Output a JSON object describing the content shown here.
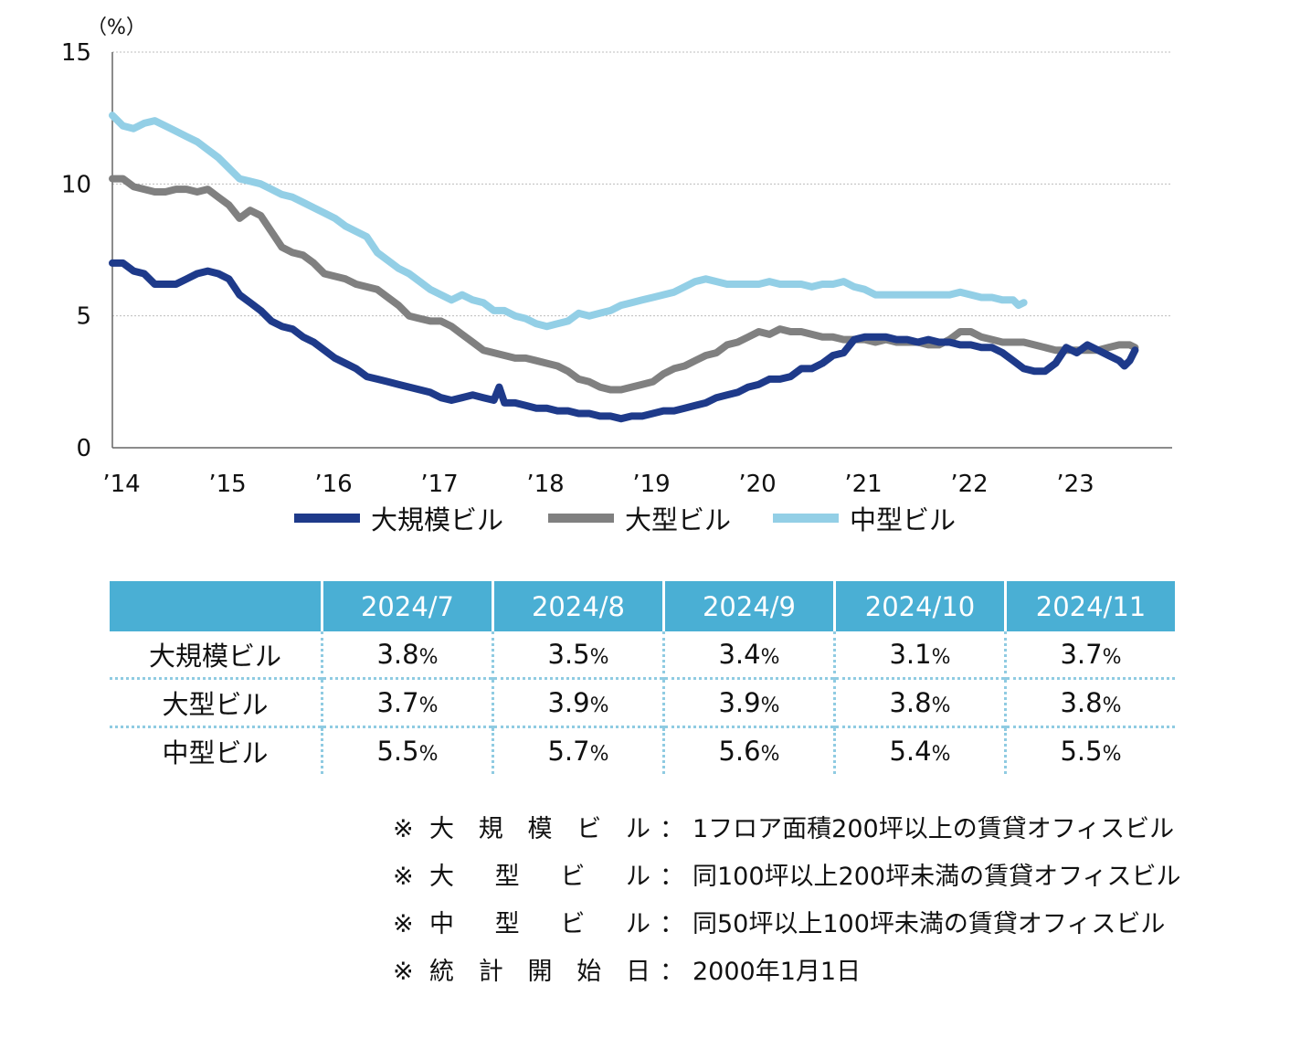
{
  "chart_data": {
    "type": "line",
    "unit_label": "（%）",
    "y_ticks": [
      "0",
      "5",
      "10",
      "15"
    ],
    "ylim": [
      0,
      15
    ],
    "x_ticks": [
      "’14",
      "’15",
      "’16",
      "’17",
      "’18",
      "’19",
      "’20",
      "’21",
      "’22",
      "’23"
    ],
    "xlim": [
      2014,
      2024
    ],
    "grid": true,
    "legend_position": "bottom",
    "series": [
      {
        "name": "大規模ビル",
        "color": "#1e3a8a",
        "points": [
          [
            2014.0,
            7.0
          ],
          [
            2014.1,
            7.0
          ],
          [
            2014.2,
            6.7
          ],
          [
            2014.3,
            6.6
          ],
          [
            2014.4,
            6.2
          ],
          [
            2014.5,
            6.2
          ],
          [
            2014.6,
            6.2
          ],
          [
            2014.7,
            6.4
          ],
          [
            2014.8,
            6.6
          ],
          [
            2014.9,
            6.7
          ],
          [
            2015.0,
            6.6
          ],
          [
            2015.1,
            6.4
          ],
          [
            2015.2,
            5.8
          ],
          [
            2015.3,
            5.5
          ],
          [
            2015.4,
            5.2
          ],
          [
            2015.5,
            4.8
          ],
          [
            2015.6,
            4.6
          ],
          [
            2015.7,
            4.5
          ],
          [
            2015.8,
            4.2
          ],
          [
            2015.9,
            4.0
          ],
          [
            2016.0,
            3.7
          ],
          [
            2016.1,
            3.4
          ],
          [
            2016.2,
            3.2
          ],
          [
            2016.3,
            3.0
          ],
          [
            2016.4,
            2.7
          ],
          [
            2016.5,
            2.6
          ],
          [
            2016.6,
            2.5
          ],
          [
            2016.7,
            2.4
          ],
          [
            2016.8,
            2.3
          ],
          [
            2016.9,
            2.2
          ],
          [
            2017.0,
            2.1
          ],
          [
            2017.1,
            1.9
          ],
          [
            2017.2,
            1.8
          ],
          [
            2017.3,
            1.9
          ],
          [
            2017.4,
            2.0
          ],
          [
            2017.5,
            1.9
          ],
          [
            2017.6,
            1.8
          ],
          [
            2017.65,
            2.3
          ],
          [
            2017.7,
            1.7
          ],
          [
            2017.8,
            1.7
          ],
          [
            2017.9,
            1.6
          ],
          [
            2018.0,
            1.5
          ],
          [
            2018.1,
            1.5
          ],
          [
            2018.2,
            1.4
          ],
          [
            2018.3,
            1.4
          ],
          [
            2018.4,
            1.3
          ],
          [
            2018.5,
            1.3
          ],
          [
            2018.6,
            1.2
          ],
          [
            2018.7,
            1.2
          ],
          [
            2018.8,
            1.1
          ],
          [
            2018.9,
            1.2
          ],
          [
            2019.0,
            1.2
          ],
          [
            2019.1,
            1.3
          ],
          [
            2019.2,
            1.4
          ],
          [
            2019.3,
            1.4
          ],
          [
            2019.4,
            1.5
          ],
          [
            2019.5,
            1.6
          ],
          [
            2019.6,
            1.7
          ],
          [
            2019.7,
            1.9
          ],
          [
            2019.8,
            2.0
          ],
          [
            2019.9,
            2.1
          ],
          [
            2020.0,
            2.3
          ],
          [
            2020.1,
            2.4
          ],
          [
            2020.2,
            2.6
          ],
          [
            2020.3,
            2.6
          ],
          [
            2020.4,
            2.7
          ],
          [
            2020.5,
            3.0
          ],
          [
            2020.6,
            3.0
          ],
          [
            2020.7,
            3.2
          ],
          [
            2020.8,
            3.5
          ],
          [
            2020.9,
            3.6
          ],
          [
            2021.0,
            4.1
          ],
          [
            2021.1,
            4.2
          ],
          [
            2021.2,
            4.2
          ],
          [
            2021.3,
            4.2
          ],
          [
            2021.4,
            4.1
          ],
          [
            2021.5,
            4.1
          ],
          [
            2021.6,
            4.0
          ],
          [
            2021.7,
            4.1
          ],
          [
            2021.8,
            4.0
          ],
          [
            2021.9,
            4.0
          ],
          [
            2022.0,
            3.9
          ],
          [
            2022.1,
            3.9
          ],
          [
            2022.2,
            3.8
          ],
          [
            2022.3,
            3.8
          ],
          [
            2022.4,
            3.6
          ],
          [
            2022.5,
            3.3
          ],
          [
            2022.6,
            3.0
          ],
          [
            2022.7,
            2.9
          ],
          [
            2022.8,
            2.9
          ],
          [
            2022.9,
            3.2
          ],
          [
            2023.0,
            3.8
          ],
          [
            2023.1,
            3.6
          ],
          [
            2023.2,
            3.9
          ],
          [
            2023.3,
            3.7
          ],
          [
            2023.4,
            3.5
          ],
          [
            2023.5,
            3.3
          ],
          [
            2023.55,
            3.1
          ],
          [
            2023.6,
            3.3
          ],
          [
            2023.65,
            3.7
          ]
        ]
      },
      {
        "name": "大型ビル",
        "color": "#808080",
        "points": [
          [
            2014.0,
            10.2
          ],
          [
            2014.1,
            10.2
          ],
          [
            2014.2,
            9.9
          ],
          [
            2014.3,
            9.8
          ],
          [
            2014.4,
            9.7
          ],
          [
            2014.5,
            9.7
          ],
          [
            2014.6,
            9.8
          ],
          [
            2014.7,
            9.8
          ],
          [
            2014.8,
            9.7
          ],
          [
            2014.9,
            9.8
          ],
          [
            2015.0,
            9.5
          ],
          [
            2015.1,
            9.2
          ],
          [
            2015.2,
            8.7
          ],
          [
            2015.3,
            9.0
          ],
          [
            2015.4,
            8.8
          ],
          [
            2015.5,
            8.2
          ],
          [
            2015.6,
            7.6
          ],
          [
            2015.7,
            7.4
          ],
          [
            2015.8,
            7.3
          ],
          [
            2015.9,
            7.0
          ],
          [
            2016.0,
            6.6
          ],
          [
            2016.1,
            6.5
          ],
          [
            2016.2,
            6.4
          ],
          [
            2016.3,
            6.2
          ],
          [
            2016.4,
            6.1
          ],
          [
            2016.5,
            6.0
          ],
          [
            2016.6,
            5.7
          ],
          [
            2016.7,
            5.4
          ],
          [
            2016.8,
            5.0
          ],
          [
            2016.9,
            4.9
          ],
          [
            2017.0,
            4.8
          ],
          [
            2017.1,
            4.8
          ],
          [
            2017.2,
            4.6
          ],
          [
            2017.3,
            4.3
          ],
          [
            2017.4,
            4.0
          ],
          [
            2017.5,
            3.7
          ],
          [
            2017.6,
            3.6
          ],
          [
            2017.7,
            3.5
          ],
          [
            2017.8,
            3.4
          ],
          [
            2017.9,
            3.4
          ],
          [
            2018.0,
            3.3
          ],
          [
            2018.1,
            3.2
          ],
          [
            2018.2,
            3.1
          ],
          [
            2018.3,
            2.9
          ],
          [
            2018.4,
            2.6
          ],
          [
            2018.5,
            2.5
          ],
          [
            2018.6,
            2.3
          ],
          [
            2018.7,
            2.2
          ],
          [
            2018.8,
            2.2
          ],
          [
            2018.9,
            2.3
          ],
          [
            2019.0,
            2.4
          ],
          [
            2019.1,
            2.5
          ],
          [
            2019.2,
            2.8
          ],
          [
            2019.3,
            3.0
          ],
          [
            2019.4,
            3.1
          ],
          [
            2019.5,
            3.3
          ],
          [
            2019.6,
            3.5
          ],
          [
            2019.7,
            3.6
          ],
          [
            2019.8,
            3.9
          ],
          [
            2019.9,
            4.0
          ],
          [
            2020.0,
            4.2
          ],
          [
            2020.1,
            4.4
          ],
          [
            2020.2,
            4.3
          ],
          [
            2020.3,
            4.5
          ],
          [
            2020.4,
            4.4
          ],
          [
            2020.5,
            4.4
          ],
          [
            2020.6,
            4.3
          ],
          [
            2020.7,
            4.2
          ],
          [
            2020.8,
            4.2
          ],
          [
            2020.9,
            4.1
          ],
          [
            2021.0,
            4.1
          ],
          [
            2021.1,
            4.1
          ],
          [
            2021.2,
            4.0
          ],
          [
            2021.3,
            4.1
          ],
          [
            2021.4,
            4.0
          ],
          [
            2021.5,
            4.0
          ],
          [
            2021.6,
            4.0
          ],
          [
            2021.7,
            3.9
          ],
          [
            2021.8,
            3.9
          ],
          [
            2021.9,
            4.1
          ],
          [
            2022.0,
            4.4
          ],
          [
            2022.1,
            4.4
          ],
          [
            2022.2,
            4.2
          ],
          [
            2022.3,
            4.1
          ],
          [
            2022.4,
            4.0
          ],
          [
            2022.5,
            4.0
          ],
          [
            2022.6,
            4.0
          ],
          [
            2022.7,
            3.9
          ],
          [
            2022.8,
            3.8
          ],
          [
            2022.9,
            3.7
          ],
          [
            2023.0,
            3.7
          ],
          [
            2023.1,
            3.7
          ],
          [
            2023.2,
            3.7
          ],
          [
            2023.3,
            3.7
          ],
          [
            2023.4,
            3.8
          ],
          [
            2023.5,
            3.9
          ],
          [
            2023.6,
            3.9
          ],
          [
            2023.65,
            3.8
          ]
        ]
      },
      {
        "name": "中型ビル",
        "color": "#93cfe6",
        "points": [
          [
            2014.0,
            12.6
          ],
          [
            2014.1,
            12.2
          ],
          [
            2014.2,
            12.1
          ],
          [
            2014.3,
            12.3
          ],
          [
            2014.4,
            12.4
          ],
          [
            2014.5,
            12.2
          ],
          [
            2014.6,
            12.0
          ],
          [
            2014.7,
            11.8
          ],
          [
            2014.8,
            11.6
          ],
          [
            2014.9,
            11.3
          ],
          [
            2015.0,
            11.0
          ],
          [
            2015.1,
            10.6
          ],
          [
            2015.2,
            10.2
          ],
          [
            2015.3,
            10.1
          ],
          [
            2015.4,
            10.0
          ],
          [
            2015.5,
            9.8
          ],
          [
            2015.6,
            9.6
          ],
          [
            2015.7,
            9.5
          ],
          [
            2015.8,
            9.3
          ],
          [
            2015.9,
            9.1
          ],
          [
            2016.0,
            8.9
          ],
          [
            2016.1,
            8.7
          ],
          [
            2016.2,
            8.4
          ],
          [
            2016.3,
            8.2
          ],
          [
            2016.4,
            8.0
          ],
          [
            2016.5,
            7.4
          ],
          [
            2016.6,
            7.1
          ],
          [
            2016.7,
            6.8
          ],
          [
            2016.8,
            6.6
          ],
          [
            2016.9,
            6.3
          ],
          [
            2017.0,
            6.0
          ],
          [
            2017.1,
            5.8
          ],
          [
            2017.2,
            5.6
          ],
          [
            2017.3,
            5.8
          ],
          [
            2017.4,
            5.6
          ],
          [
            2017.5,
            5.5
          ],
          [
            2017.6,
            5.2
          ],
          [
            2017.7,
            5.2
          ],
          [
            2017.8,
            5.0
          ],
          [
            2017.9,
            4.9
          ],
          [
            2018.0,
            4.7
          ],
          [
            2018.1,
            4.6
          ],
          [
            2018.2,
            4.7
          ],
          [
            2018.3,
            4.8
          ],
          [
            2018.4,
            5.1
          ],
          [
            2018.5,
            5.0
          ],
          [
            2018.6,
            5.1
          ],
          [
            2018.7,
            5.2
          ],
          [
            2018.8,
            5.4
          ],
          [
            2018.9,
            5.5
          ],
          [
            2019.0,
            5.6
          ],
          [
            2019.1,
            5.7
          ],
          [
            2019.2,
            5.8
          ],
          [
            2019.3,
            5.9
          ],
          [
            2019.4,
            6.1
          ],
          [
            2019.5,
            6.3
          ],
          [
            2019.6,
            6.4
          ],
          [
            2019.7,
            6.3
          ],
          [
            2019.8,
            6.2
          ],
          [
            2019.9,
            6.2
          ],
          [
            2020.0,
            6.2
          ],
          [
            2020.1,
            6.2
          ],
          [
            2020.2,
            6.3
          ],
          [
            2020.3,
            6.2
          ],
          [
            2020.4,
            6.2
          ],
          [
            2020.5,
            6.2
          ],
          [
            2020.6,
            6.1
          ],
          [
            2020.7,
            6.2
          ],
          [
            2020.8,
            6.2
          ],
          [
            2020.9,
            6.3
          ],
          [
            2021.0,
            6.1
          ],
          [
            2021.1,
            6.0
          ],
          [
            2021.2,
            5.8
          ],
          [
            2021.3,
            5.8
          ],
          [
            2021.4,
            5.8
          ],
          [
            2021.5,
            5.8
          ],
          [
            2021.6,
            5.8
          ],
          [
            2021.7,
            5.8
          ],
          [
            2021.8,
            5.8
          ],
          [
            2021.9,
            5.8
          ],
          [
            2022.0,
            5.9
          ],
          [
            2022.1,
            5.8
          ],
          [
            2022.2,
            5.7
          ],
          [
            2022.3,
            5.7
          ],
          [
            2022.4,
            5.6
          ],
          [
            2022.5,
            5.6
          ],
          [
            2022.55,
            5.4
          ],
          [
            2022.6,
            5.5
          ]
        ]
      }
    ]
  },
  "table": {
    "headers": [
      "2024/7",
      "2024/8",
      "2024/9",
      "2024/10",
      "2024/11"
    ],
    "pct_sign": "%",
    "rows": [
      {
        "label": "大規模ビル",
        "values": [
          "3.8",
          "3.5",
          "3.4",
          "3.1",
          "3.7"
        ]
      },
      {
        "label": "大型ビル",
        "values": [
          "3.7",
          "3.9",
          "3.9",
          "3.8",
          "3.8"
        ]
      },
      {
        "label": "中型ビル",
        "values": [
          "5.5",
          "5.7",
          "5.6",
          "5.4",
          "5.5"
        ]
      }
    ]
  },
  "notes": {
    "mark": "※",
    "colon": "：",
    "items": [
      {
        "label": [
          "大",
          "規",
          "模",
          "ビ",
          "ル"
        ],
        "text": "1フロア面積200坪以上の賃貸オフィスビル"
      },
      {
        "label": [
          "大",
          "型",
          "ビ",
          "ル"
        ],
        "text": "同100坪以上200坪未満の賃貸オフィスビル"
      },
      {
        "label": [
          "中",
          "型",
          "ビ",
          "ル"
        ],
        "text": "同50坪以上100坪未満の賃貸オフィスビル"
      },
      {
        "label": [
          "統",
          "計",
          "開",
          "始",
          "日"
        ],
        "text": "2000年1月1日"
      }
    ]
  }
}
